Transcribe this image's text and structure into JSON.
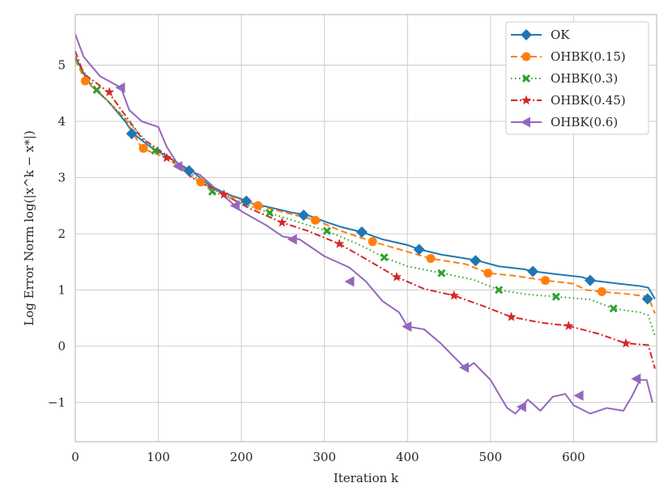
{
  "chart_data": {
    "type": "line",
    "title": "",
    "xlabel": "Iteration k",
    "ylabel": "Log Error Norm log(|x^k − x*|)",
    "xlim": [
      0,
      700
    ],
    "ylim": [
      -1.7,
      5.9
    ],
    "x_ticks": [
      0,
      100,
      200,
      300,
      400,
      500,
      600
    ],
    "x_tick_labels": [
      "0",
      "100",
      "200",
      "300",
      "400",
      "500",
      "600"
    ],
    "y_ticks": [
      -1,
      0,
      1,
      2,
      3,
      4,
      5
    ],
    "y_tick_labels": [
      "−1",
      "0",
      "1",
      "2",
      "3",
      "4",
      "5"
    ],
    "grid": true,
    "legend_position": "top-right",
    "series": [
      {
        "name": "OK",
        "color": "#1f77b4",
        "linestyle": "solid",
        "marker": "diamond",
        "x": [
          0,
          10,
          20,
          40,
          60,
          70,
          90,
          110,
          130,
          140,
          160,
          180,
          200,
          210,
          240,
          260,
          280,
          300,
          320,
          345,
          370,
          400,
          415,
          440,
          470,
          485,
          510,
          540,
          552,
          580,
          610,
          622,
          650,
          680,
          690,
          698
        ],
        "y": [
          5.15,
          4.85,
          4.62,
          4.35,
          4.0,
          3.78,
          3.55,
          3.38,
          3.2,
          3.12,
          2.88,
          2.72,
          2.62,
          2.55,
          2.45,
          2.38,
          2.33,
          2.22,
          2.12,
          2.03,
          1.9,
          1.8,
          1.72,
          1.63,
          1.56,
          1.52,
          1.42,
          1.37,
          1.33,
          1.28,
          1.23,
          1.17,
          1.12,
          1.07,
          1.04,
          0.84
        ],
        "marker_x": [
          68,
          137,
          206,
          275,
          345,
          414,
          482,
          551,
          620,
          689
        ],
        "marker_y": [
          3.78,
          3.12,
          2.58,
          2.33,
          2.03,
          1.72,
          1.52,
          1.33,
          1.17,
          0.84
        ]
      },
      {
        "name": "OHBK(0.15)",
        "color": "#ff7f0e",
        "linestyle": "dashed",
        "marker": "circle",
        "x": [
          0,
          12,
          30,
          60,
          80,
          110,
          150,
          180,
          220,
          260,
          290,
          320,
          358,
          400,
          428,
          470,
          497,
          530,
          566,
          600,
          615,
          634,
          670,
          690,
          698
        ],
        "y": [
          5.1,
          4.72,
          4.5,
          4.05,
          3.52,
          3.35,
          2.92,
          2.7,
          2.5,
          2.35,
          2.24,
          2.05,
          1.86,
          1.68,
          1.56,
          1.46,
          1.3,
          1.25,
          1.17,
          1.11,
          1.0,
          0.97,
          0.92,
          0.88,
          0.58
        ],
        "marker_x": [
          12,
          82,
          151,
          220,
          289,
          358,
          428,
          497,
          566,
          634
        ],
        "marker_y": [
          4.72,
          3.52,
          2.92,
          2.5,
          2.24,
          1.86,
          1.56,
          1.3,
          1.17,
          0.97
        ]
      },
      {
        "name": "OHBK(0.3)",
        "color": "#2ca02c",
        "linestyle": "dotted",
        "marker": "x",
        "x": [
          0,
          26,
          60,
          96,
          130,
          165,
          200,
          234,
          270,
          303,
          340,
          372,
          400,
          441,
          480,
          510,
          545,
          579,
          620,
          648,
          680,
          690,
          698
        ],
        "y": [
          5.1,
          4.56,
          4.05,
          3.48,
          3.2,
          2.75,
          2.55,
          2.37,
          2.2,
          2.05,
          1.82,
          1.58,
          1.42,
          1.3,
          1.18,
          1.0,
          0.92,
          0.88,
          0.83,
          0.67,
          0.6,
          0.55,
          0.18
        ],
        "marker_x": [
          26,
          96,
          165,
          234,
          303,
          372,
          441,
          510,
          579,
          648
        ],
        "marker_y": [
          4.56,
          3.48,
          2.75,
          2.37,
          2.05,
          1.58,
          1.3,
          1.0,
          0.88,
          0.67
        ]
      },
      {
        "name": "OHBK(0.45)",
        "color": "#d62728",
        "linestyle": "dashdot",
        "marker": "star",
        "x": [
          0,
          10,
          40,
          80,
          110,
          140,
          179,
          210,
          249,
          280,
          318,
          350,
          387,
          420,
          456,
          490,
          525,
          560,
          594,
          630,
          663,
          690,
          698
        ],
        "y": [
          5.25,
          4.85,
          4.52,
          3.7,
          3.4,
          3.0,
          2.7,
          2.45,
          2.2,
          2.05,
          1.82,
          1.55,
          1.23,
          1.02,
          0.9,
          0.72,
          0.52,
          0.42,
          0.36,
          0.22,
          0.05,
          0.02,
          -0.4
        ],
        "marker_x": [
          41,
          110,
          179,
          249,
          318,
          387,
          456,
          525,
          594,
          663
        ],
        "marker_y": [
          4.52,
          3.35,
          2.7,
          2.2,
          1.82,
          1.23,
          0.9,
          0.52,
          0.36,
          0.05
        ]
      },
      {
        "name": "OHBK(0.6)",
        "color": "#9467bd",
        "linestyle": "solid",
        "marker": "triangle-left",
        "x": [
          0,
          10,
          30,
          55,
          65,
          80,
          100,
          110,
          125,
          150,
          175,
          200,
          230,
          250,
          270,
          300,
          330,
          350,
          370,
          390,
          400,
          420,
          440,
          460,
          470,
          480,
          500,
          510,
          520,
          530,
          545,
          560,
          575,
          590,
          600,
          620,
          640,
          660,
          670,
          680,
          688,
          695
        ],
        "y": [
          5.55,
          5.15,
          4.8,
          4.6,
          4.2,
          4.0,
          3.9,
          3.55,
          3.2,
          3.05,
          2.72,
          2.4,
          2.15,
          1.95,
          1.9,
          1.6,
          1.4,
          1.15,
          0.8,
          0.6,
          0.35,
          0.3,
          0.05,
          -0.25,
          -0.4,
          -0.3,
          -0.6,
          -0.85,
          -1.1,
          -1.2,
          -0.95,
          -1.15,
          -0.9,
          -0.85,
          -1.05,
          -1.2,
          -1.1,
          -1.15,
          -0.9,
          -0.6,
          -0.6,
          -1.0
        ],
        "marker_x": [
          55,
          124,
          193,
          262,
          331,
          400,
          469,
          538,
          607,
          676
        ],
        "marker_y": [
          4.6,
          3.2,
          2.5,
          1.9,
          1.15,
          0.35,
          -0.38,
          -1.08,
          -0.88,
          -0.58
        ]
      }
    ]
  }
}
